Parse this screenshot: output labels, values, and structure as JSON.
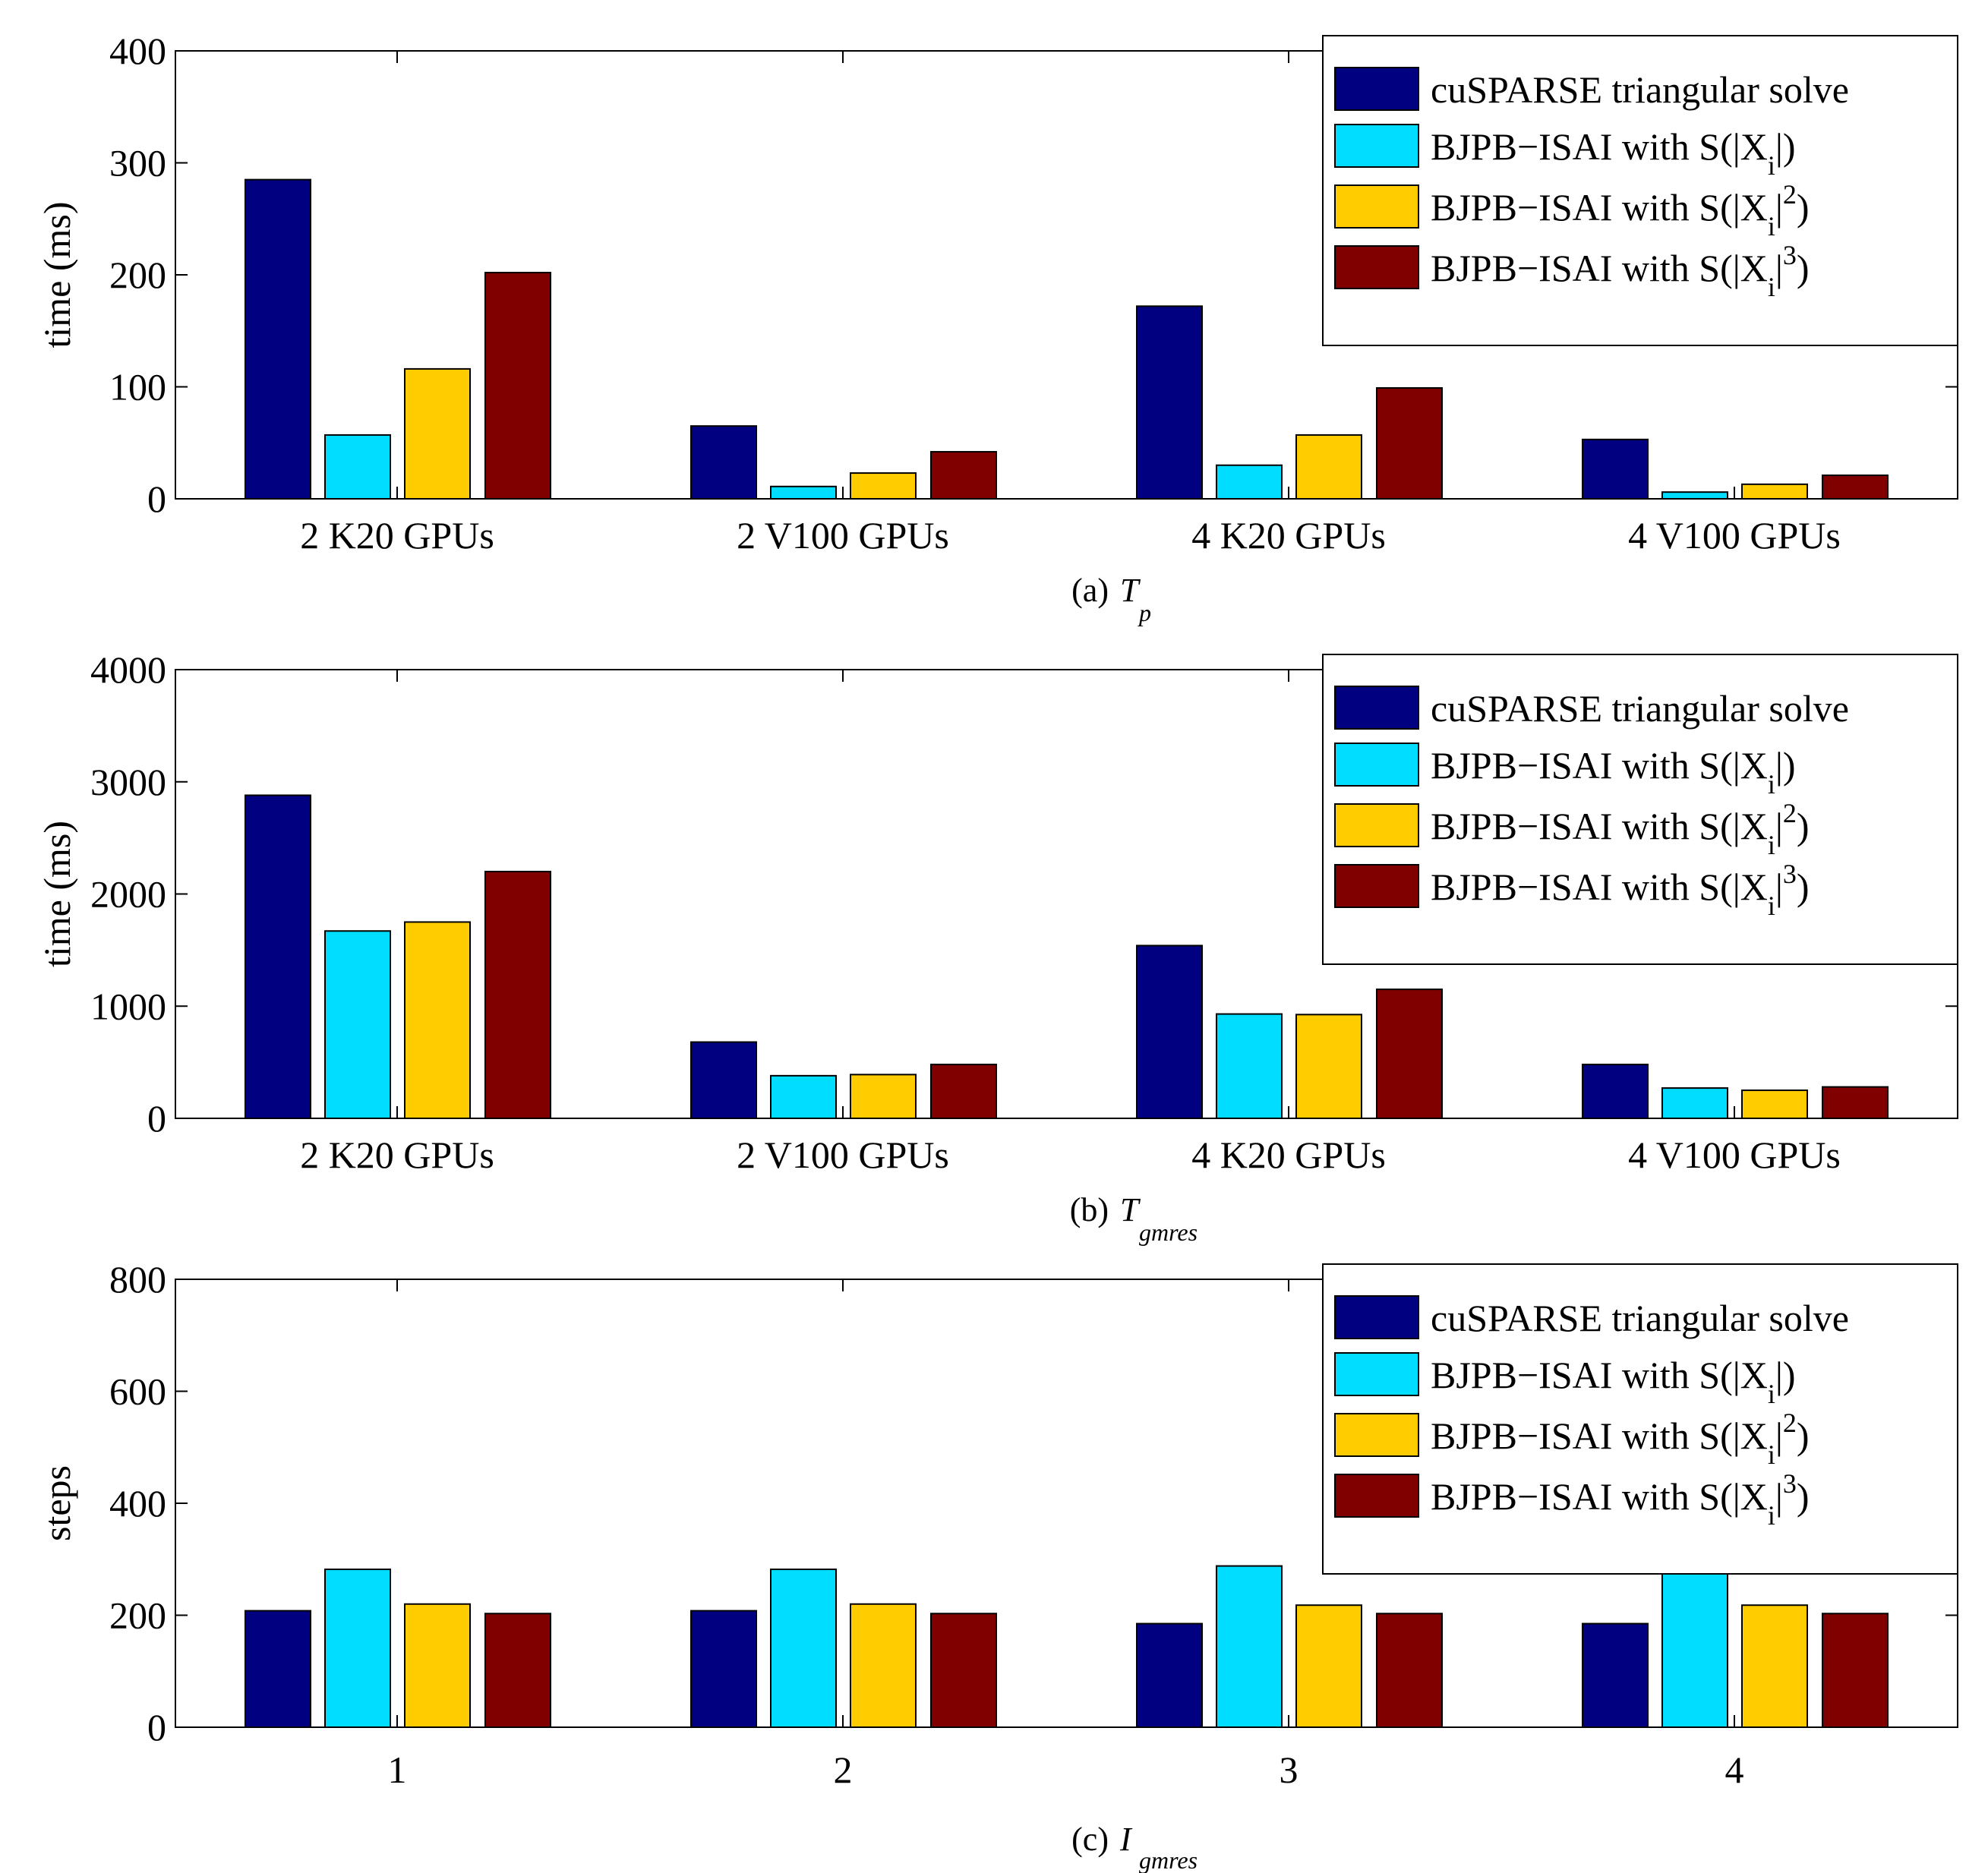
{
  "figure": {
    "legend_entries": [
      {
        "name": "cuSPARSE triangular solve",
        "color": "#000080",
        "label": {
          "main": "cuSPARSE triangular solve"
        }
      },
      {
        "name": "BJPB-ISAI with S(|Xi|)",
        "color": "#00DDFF",
        "label": {
          "main": "BJPB−ISAI with S(|X",
          "sub": "i",
          "tail": "|)"
        }
      },
      {
        "name": "BJPB-ISAI with S(|Xi|^2)",
        "color": "#FFCC00",
        "label": {
          "main": "BJPB−ISAI with S(|X",
          "sub": "i",
          "mid": "|",
          "sup": "2",
          "tail": ")"
        }
      },
      {
        "name": "BJPB-ISAI with S(|Xi|^3)",
        "color": "#800000",
        "label": {
          "main": "BJPB−ISAI with S(|X",
          "sub": "i",
          "mid": "|",
          "sup": "3",
          "tail": ")"
        }
      }
    ]
  },
  "chart_data": [
    {
      "type": "bar",
      "title": "",
      "caption": {
        "prefix": "(a)",
        "symbol": "T",
        "subscript": "p"
      },
      "xlabel": "",
      "ylabel": "time (ms)",
      "categories": [
        "2 K20 GPUs",
        "2 V100 GPUs",
        "4 K20 GPUs",
        "4 V100 GPUs"
      ],
      "ylim": [
        0,
        400
      ],
      "yticks": [
        0,
        100,
        200,
        300,
        400
      ],
      "legend_position": "top-right",
      "grid": false,
      "series": [
        {
          "name": "cuSPARSE triangular solve",
          "values": [
            285,
            65,
            172,
            53
          ]
        },
        {
          "name": "BJPB-ISAI with S(|Xi|)",
          "values": [
            57,
            11,
            30,
            6
          ]
        },
        {
          "name": "BJPB-ISAI with S(|Xi|^2)",
          "values": [
            116,
            23,
            57,
            13
          ]
        },
        {
          "name": "BJPB-ISAI with S(|Xi|^3)",
          "values": [
            202,
            42,
            99,
            21
          ]
        }
      ]
    },
    {
      "type": "bar",
      "title": "",
      "caption": {
        "prefix": "(b)",
        "symbol": "T",
        "subscript": "gmres"
      },
      "xlabel": "",
      "ylabel": "time (ms)",
      "categories": [
        "2 K20 GPUs",
        "2 V100 GPUs",
        "4 K20 GPUs",
        "4 V100 GPUs"
      ],
      "ylim": [
        0,
        4000
      ],
      "yticks": [
        0,
        1000,
        2000,
        3000,
        4000
      ],
      "legend_position": "top-right",
      "grid": false,
      "series": [
        {
          "name": "cuSPARSE triangular solve",
          "values": [
            2880,
            680,
            1540,
            480
          ]
        },
        {
          "name": "BJPB-ISAI with S(|Xi|)",
          "values": [
            1670,
            380,
            930,
            270
          ]
        },
        {
          "name": "BJPB-ISAI with S(|Xi|^2)",
          "values": [
            1750,
            390,
            925,
            250
          ]
        },
        {
          "name": "BJPB-ISAI with S(|Xi|^3)",
          "values": [
            2200,
            480,
            1150,
            280
          ]
        }
      ]
    },
    {
      "type": "bar",
      "title": "",
      "caption": {
        "prefix": "(c)",
        "symbol": "I",
        "subscript": "gmres"
      },
      "xlabel": "",
      "ylabel": "steps",
      "categories": [
        "1",
        "2",
        "3",
        "4"
      ],
      "ylim": [
        0,
        800
      ],
      "yticks": [
        0,
        200,
        400,
        600,
        800
      ],
      "legend_position": "top-right",
      "grid": false,
      "series": [
        {
          "name": "cuSPARSE triangular solve",
          "values": [
            208,
            208,
            185,
            185
          ]
        },
        {
          "name": "BJPB-ISAI with S(|Xi|)",
          "values": [
            282,
            282,
            288,
            282
          ]
        },
        {
          "name": "BJPB-ISAI with S(|Xi|^2)",
          "values": [
            220,
            220,
            218,
            218
          ]
        },
        {
          "name": "BJPB-ISAI with S(|Xi|^3)",
          "values": [
            203,
            203,
            203,
            203
          ]
        }
      ]
    }
  ]
}
